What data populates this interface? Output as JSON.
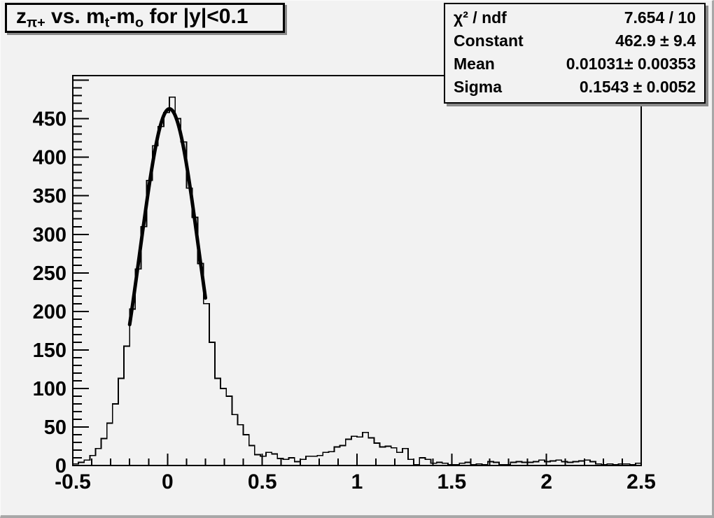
{
  "window": {
    "background": "#f2f2f2",
    "frame_line_color": "#000000",
    "shadow_color": "#8a8a8a"
  },
  "title_box": {
    "segments": [
      {
        "text": "z"
      },
      {
        "text": "π+",
        "sub": true
      },
      {
        "text": " vs. m"
      },
      {
        "text": "t",
        "sub": true
      },
      {
        "text": "-m"
      },
      {
        "text": "o",
        "sub": true
      },
      {
        "text": " for |y|<0.1"
      }
    ]
  },
  "stats_box": {
    "rows": [
      {
        "label": "χ² / ndf",
        "value": "7.654 / 10"
      },
      {
        "label": "Constant",
        "value": "462.9 ± 9.4"
      },
      {
        "label": "Mean",
        "value": "0.01031± 0.00353"
      },
      {
        "label": "Sigma",
        "value": "0.1543 ± 0.0052"
      }
    ]
  },
  "chart_data": {
    "type": "bar",
    "subtype": "histogram-with-gaussian-fit",
    "title": "z_{π+} vs. m_t-m_o for |y|<0.1",
    "xlabel": "",
    "ylabel": "",
    "xlim": [
      -0.5,
      2.5
    ],
    "ylim": [
      0,
      506
    ],
    "grid": false,
    "x_start": -0.5,
    "bin_width": 0.03,
    "counts": [
      2,
      4,
      7,
      13,
      22,
      35,
      55,
      80,
      113,
      155,
      203,
      255,
      310,
      370,
      415,
      440,
      458,
      478,
      450,
      420,
      360,
      322,
      262,
      210,
      160,
      113,
      100,
      90,
      66,
      53,
      40,
      26,
      14,
      12,
      17,
      15,
      9,
      8,
      10,
      5,
      8,
      12,
      12,
      13,
      17,
      18,
      24,
      26,
      34,
      38,
      37,
      43,
      36,
      29,
      24,
      25,
      23,
      17,
      22,
      8,
      1,
      10,
      8,
      3,
      4,
      3,
      1,
      1,
      3,
      4,
      1,
      2,
      1,
      5,
      4,
      1,
      1,
      4,
      5,
      4,
      4,
      5,
      7,
      5,
      6,
      7,
      5,
      4,
      5,
      6,
      7,
      5,
      2,
      1,
      2,
      1,
      2,
      2,
      1,
      3
    ],
    "x_ticks": {
      "values": [
        -0.5,
        0,
        0.5,
        1,
        1.5,
        2,
        2.5
      ],
      "labels": [
        "-0.5",
        "0",
        "0.5",
        "1",
        "1.5",
        "2",
        "2.5"
      ],
      "minor_step": 0.1
    },
    "y_ticks": {
      "values": [
        0,
        50,
        100,
        150,
        200,
        250,
        300,
        350,
        400,
        450
      ],
      "labels": [
        "0",
        "50",
        "100",
        "150",
        "200",
        "250",
        "300",
        "350",
        "400",
        "450"
      ],
      "minor_step": 10,
      "minor_max": 500
    },
    "fit": {
      "model": "gaussian",
      "chi2": 7.654,
      "ndf": 10,
      "constant": 462.9,
      "constant_err": 9.4,
      "mean": 0.01031,
      "mean_err": 0.00353,
      "sigma": 0.1543,
      "sigma_err": 0.0052,
      "range": [
        -0.2,
        0.2
      ]
    }
  }
}
